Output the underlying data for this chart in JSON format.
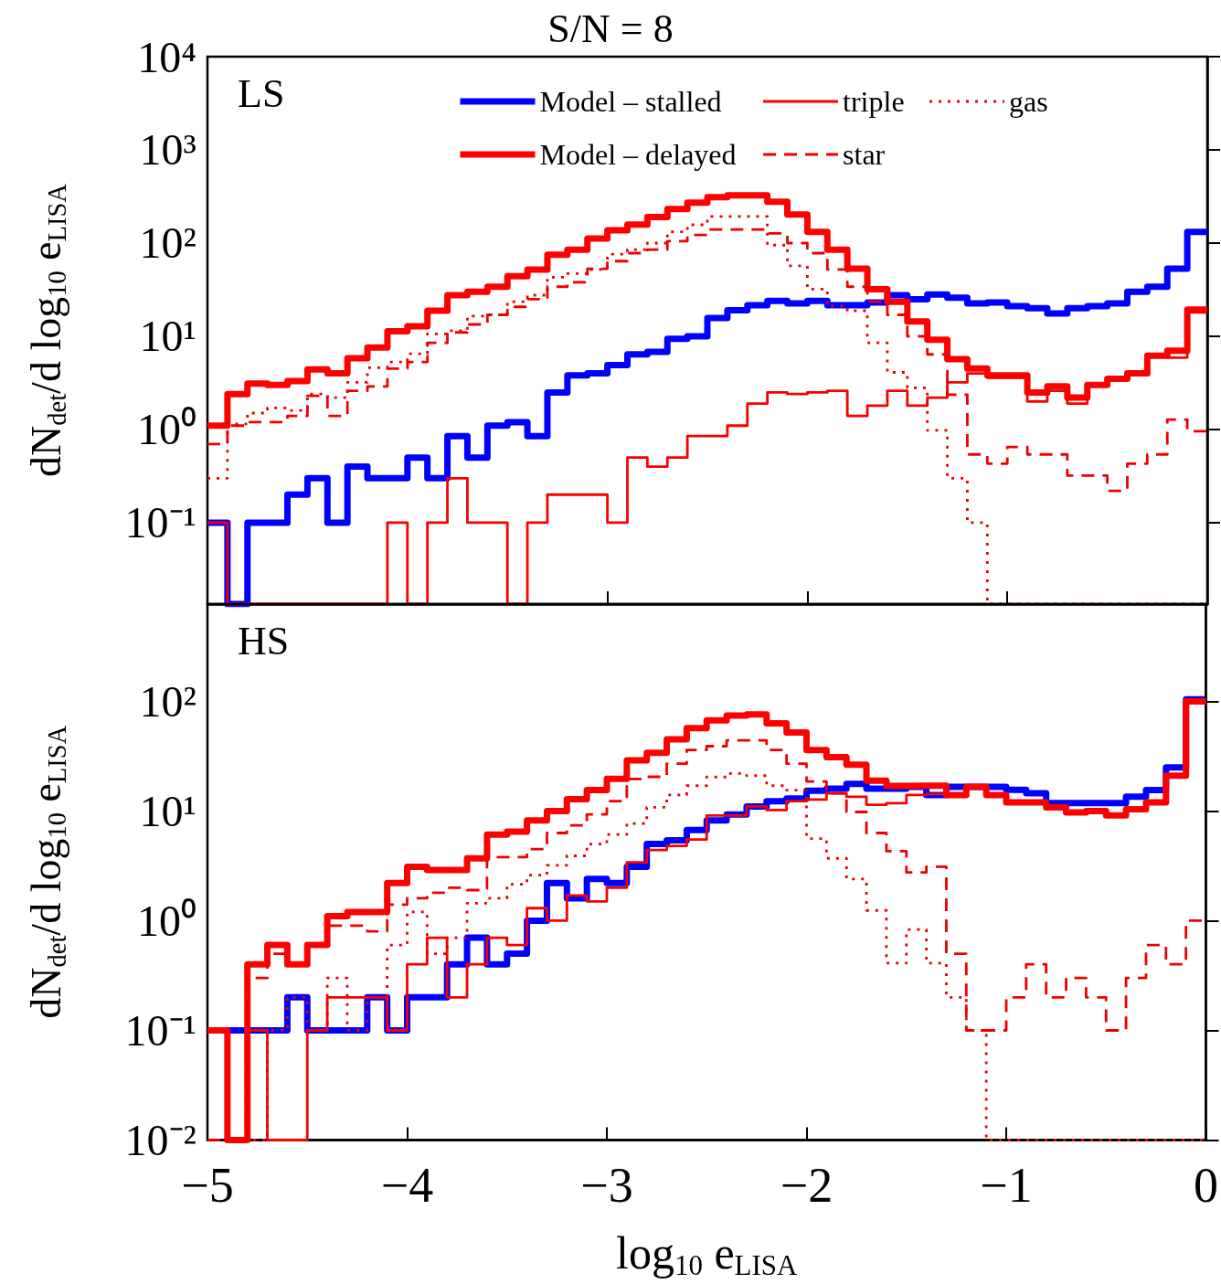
{
  "chart_data": [
    {
      "type": "histogram",
      "title": "S/N = 8",
      "ylabel": "dN$_{det}$/d log$_{10}$ e$_{LISA}$",
      "annotations": [
        "LS"
      ],
      "log": "y",
      "legend": "top",
      "tick_labels": "y",
      "marker": "none",
      "bins": [
        -5,
        -4.9,
        -4.8,
        -4.7,
        -4.6,
        -4.5,
        -4.4,
        -4.3,
        -4.2,
        -4.1,
        -4,
        -3.9,
        -3.8,
        -3.7,
        -3.6,
        -3.5,
        -3.4,
        -3.3,
        -3.2,
        -3.1,
        -3,
        -2.9,
        -2.8,
        -2.7,
        -2.6,
        -2.5,
        -2.4,
        -2.3,
        -2.2,
        -2.1,
        -2,
        -1.9,
        -1.8,
        -1.7,
        -1.6,
        -1.5,
        -1.4,
        -1.3,
        -1.2,
        -1.1,
        -1,
        -0.9,
        -0.8,
        -0.7,
        -0.6,
        -0.5,
        -0.4,
        -0.3,
        -0.2,
        -0.1,
        0
      ],
      "xlim": [
        -5,
        0
      ],
      "xticks": [
        {
          "value": -5,
          "label": null
        },
        {
          "value": -4,
          "label": null
        },
        {
          "value": -3,
          "label": null
        },
        {
          "value": -2,
          "label": null
        },
        {
          "value": -1,
          "label": null
        },
        {
          "value": 0,
          "label": null
        }
      ],
      "ylim": [
        0.0134,
        10000
      ],
      "yticks": [
        {
          "value": 0.1,
          "label": "10⁻¹"
        },
        {
          "value": 1,
          "label": "10⁰"
        },
        {
          "value": 10,
          "label": "10¹"
        },
        {
          "value": 100,
          "label": "10²"
        },
        {
          "value": 1000,
          "label": "10³"
        },
        {
          "value": 10000,
          "label": "10⁴"
        }
      ],
      "series": [
        {
          "name": "Model – stalled",
          "color": "#0000ff",
          "values": [
            0.1,
            null,
            0.1,
            0.1,
            0.2,
            0.3,
            0.1,
            0.4,
            0.3,
            0.3,
            0.5,
            0.3,
            0.85,
            0.5,
            1.1,
            1.2,
            0.85,
            2.5,
            3.8,
            4,
            4.9,
            6.4,
            6.8,
            9.4,
            10,
            15.7,
            19,
            21.5,
            24,
            22.5,
            24,
            21.5,
            21.5,
            23,
            27.6,
            25,
            28,
            26,
            22.5,
            23,
            21,
            20,
            17.6,
            20,
            21,
            22.5,
            30,
            34,
            53,
            132
          ]
        },
        {
          "name": "Model – delayed",
          "color": "#ff0000",
          "values": [
            1.1,
            2.4,
            3.1,
            3,
            3.3,
            4.4,
            4,
            5.8,
            7.6,
            11.3,
            12.8,
            18.8,
            27.6,
            30,
            34,
            44,
            52,
            75,
            85,
            112,
            137,
            158,
            190,
            232,
            272,
            310,
            325,
            325,
            277,
            202,
            132,
            85,
            53,
            32,
            23.5,
            14.4,
            9.2,
            5.7,
            4.5,
            3.8,
            3.8,
            2.5,
            2.9,
            2.2,
            3,
            3.5,
            4,
            6.2,
            7,
            19.3
          ]
        },
        {
          "name": "triple",
          "color": "#f60000",
          "line_style": "solid",
          "values": [
            0.1,
            null,
            null,
            null,
            null,
            null,
            null,
            null,
            null,
            0.1,
            null,
            0.1,
            0.3,
            0.1,
            0.1,
            null,
            0.1,
            0.2,
            0.2,
            0.2,
            0.1,
            0.5,
            0.4,
            0.5,
            0.85,
            0.85,
            1.1,
            1.9,
            2.5,
            2.4,
            2.5,
            2.6,
            1.4,
            1.8,
            2.6,
            1.8,
            2.2,
            3.2,
            4,
            3.6,
            3.6,
            2,
            2.6,
            1.9,
            3,
            3.4,
            3.9,
            6,
            5.9,
            18
          ]
        },
        {
          "name": "star",
          "color": "#ee0000",
          "line_style": "dashed",
          "values": [
            0.7,
            1.1,
            1.2,
            1.2,
            1.4,
            2.3,
            1.4,
            2.6,
            2.9,
            4.5,
            5.3,
            8.5,
            11,
            13.4,
            17,
            20.7,
            25,
            34,
            38,
            53,
            64,
            78,
            85,
            105,
            122,
            140,
            140,
            140,
            127,
            100,
            78,
            52,
            34,
            23.5,
            17,
            10,
            6.4,
            2.36,
            0.54,
            0.43,
            0.65,
            0.54,
            0.54,
            0.32,
            0.32,
            0.22,
            0.43,
            0.54,
            1.28,
            0.96
          ]
        },
        {
          "name": "gas",
          "color": "#e60000",
          "line_style": "dotted",
          "values": [
            0.3,
            1.15,
            1.5,
            1.7,
            1.6,
            2.4,
            2.2,
            3.2,
            4.6,
            5.3,
            6.5,
            10.6,
            11.5,
            16.5,
            17,
            23.5,
            27.6,
            43,
            47,
            52,
            76,
            85,
            100,
            132,
            157,
            193,
            193,
            193,
            95,
            57,
            32,
            21,
            18.8,
            8.5,
            4.1,
            2.8,
            0.98,
            0.3,
            0.1,
            null,
            null,
            null,
            null,
            null,
            null,
            null,
            null,
            null,
            null,
            null
          ]
        }
      ]
    },
    {
      "type": "histogram",
      "xlabel": "log$_{10}$ e$_{LISA}$",
      "ylabel": "dN$_{det}$/d log$_{10}$ e$_{LISA}$",
      "annotations": [
        "HS"
      ],
      "log": "y",
      "marker": "none",
      "bins": [
        -5,
        -4.9,
        -4.8,
        -4.7,
        -4.6,
        -4.5,
        -4.4,
        -4.3,
        -4.2,
        -4.1,
        -4,
        -3.9,
        -3.8,
        -3.7,
        -3.6,
        -3.5,
        -3.4,
        -3.3,
        -3.2,
        -3.1,
        -3,
        -2.9,
        -2.8,
        -2.7,
        -2.6,
        -2.5,
        -2.4,
        -2.3,
        -2.2,
        -2.1,
        -2,
        -1.9,
        -1.8,
        -1.7,
        -1.6,
        -1.5,
        -1.4,
        -1.3,
        -1.2,
        -1.1,
        -1,
        -0.9,
        -0.8,
        -0.7,
        -0.6,
        -0.5,
        -0.4,
        -0.3,
        -0.2,
        -0.1,
        0
      ],
      "xlim": [
        -5,
        0
      ],
      "xticks": [
        {
          "value": -5,
          "label": "−5"
        },
        {
          "value": -4,
          "label": "−4"
        },
        {
          "value": -3,
          "label": "−3"
        },
        {
          "value": -2,
          "label": "−2"
        },
        {
          "value": -1,
          "label": "−1"
        },
        0
      ],
      "ylim": [
        0.01,
        770
      ],
      "yticks": [
        {
          "value": 0.01,
          "label": "10⁻²"
        },
        {
          "value": 0.1,
          "label": "10⁻¹"
        },
        {
          "value": 1,
          "label": "10⁰"
        },
        {
          "value": 10,
          "label": "10¹"
        },
        {
          "value": 100,
          "label": "10²"
        }
      ],
      "series": [
        {
          "color": "#0000ff",
          "values": [
            0.1,
            0.1,
            0.1,
            0.1,
            0.2,
            0.1,
            0.1,
            0.1,
            0.2,
            0.1,
            0.2,
            0.2,
            0.4,
            0.7,
            0.4,
            0.5,
            1,
            2.2,
            1.6,
            2.4,
            2.2,
            3.1,
            5,
            5.4,
            6.7,
            8.2,
            9.3,
            11,
            12.3,
            13,
            15.3,
            16,
            17.7,
            16,
            16,
            16.6,
            14,
            16.6,
            16.6,
            16.6,
            15.6,
            14.5,
            11.8,
            11.8,
            11.8,
            11.8,
            13.5,
            15.5,
            25,
            104
          ]
        },
        {
          "color": "#ff0000",
          "values": [
            0.1,
            null,
            0.4,
            0.6,
            0.4,
            0.6,
            1.1,
            1.2,
            1.2,
            2.2,
            3.1,
            2.9,
            2.9,
            3.7,
            6.1,
            6.5,
            8.2,
            10,
            12.8,
            15.5,
            19.6,
            29,
            34,
            45,
            57,
            67,
            74,
            76,
            63,
            52,
            36,
            31,
            26.4,
            18.9,
            16.9,
            17,
            17,
            14,
            16.6,
            14,
            12,
            12,
            10.8,
            9.7,
            10,
            9.1,
            10.4,
            12,
            21,
            100
          ]
        },
        {
          "color": "#f60000",
          "line_style": "solid",
          "values": [
            0.1,
            null,
            0.1,
            null,
            null,
            0.1,
            0.2,
            0.2,
            0.2,
            0.1,
            0.4,
            0.7,
            0.2,
            0.4,
            0.7,
            0.6,
            1.3,
            1,
            1.7,
            1.5,
            2,
            3.4,
            4.4,
            4.8,
            5.5,
            9.1,
            9.1,
            11,
            10.2,
            12.3,
            12.7,
            14.5,
            13.5,
            11.4,
            11.8,
            14,
            14.3,
            14,
            16.6,
            14,
            12,
            12,
            10.8,
            9.7,
            10,
            9.1,
            10.4,
            12,
            21,
            96
          ]
        },
        {
          "color": "#ee0000",
          "line_style": "dashed",
          "values": [
            null,
            null,
            0.3,
            0.5,
            0.4,
            0.6,
            0.9,
            0.9,
            0.8,
            1.4,
            1.6,
            1.8,
            2,
            1.9,
            3.8,
            3.8,
            4.5,
            6.3,
            7.4,
            9.3,
            12.3,
            19.6,
            20.5,
            27,
            36,
            39,
            44,
            44,
            36,
            27,
            18.6,
            14.5,
            9.8,
            6.3,
            4.3,
            2.75,
            3.1,
            0.5,
            0.1,
            0.1,
            0.2,
            0.4,
            0.2,
            0.3,
            0.2,
            0.1,
            0.3,
            0.6,
            0.4,
            1
          ]
        },
        {
          "color": "#e60000",
          "line_style": "dotted",
          "values": [
            null,
            null,
            null,
            0.1,
            0.2,
            0.1,
            0.3,
            0.1,
            0.2,
            0.6,
            1.2,
            0.5,
            0.7,
            1.44,
            1.6,
            2.15,
            2.6,
            3.2,
            3.9,
            5,
            6.1,
            7.7,
            10.8,
            14,
            17,
            20.4,
            22,
            21,
            17,
            15.5,
            5.6,
            3.7,
            2.4,
            1.24,
            0.41,
            0.83,
            0.41,
            0.2,
            0.1,
            null,
            null,
            null,
            null,
            null,
            null,
            null,
            null,
            null,
            null,
            null
          ]
        }
      ]
    }
  ]
}
